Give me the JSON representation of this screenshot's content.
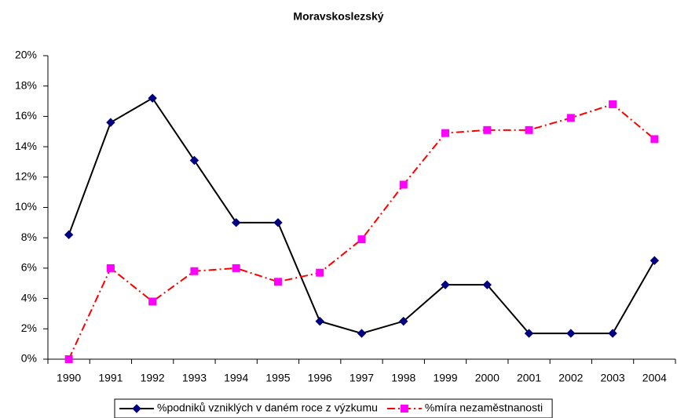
{
  "chart_data": {
    "type": "line",
    "title": "Moravskoslezský",
    "categories": [
      "1990",
      "1991",
      "1992",
      "1993",
      "1994",
      "1995",
      "1996",
      "1997",
      "1998",
      "1999",
      "2000",
      "2001",
      "2002",
      "2003",
      "2004"
    ],
    "series": [
      {
        "name": "%podniků vzniklých v daném roce z výzkumu",
        "color": "#000080",
        "line_color": "#000000",
        "marker": "diamond",
        "dash": "solid",
        "values": [
          8.2,
          15.6,
          17.2,
          13.1,
          9.0,
          9.0,
          2.5,
          1.7,
          2.5,
          4.9,
          4.9,
          1.7,
          1.7,
          1.7,
          6.5
        ]
      },
      {
        "name": "%míra nezaměstnanosti",
        "color": "#ff00ff",
        "line_color": "#ff0000",
        "marker": "square",
        "dash": "dash-dot",
        "values": [
          0,
          6.0,
          3.8,
          5.8,
          6.0,
          5.1,
          5.7,
          7.9,
          11.5,
          14.9,
          15.1,
          15.1,
          15.9,
          16.8,
          14.5
        ]
      }
    ],
    "ylim": [
      0,
      20
    ],
    "yticks": [
      {
        "value": 0,
        "label": "0%"
      },
      {
        "value": 2,
        "label": "2%"
      },
      {
        "value": 4,
        "label": "4%"
      },
      {
        "value": 6,
        "label": "6%"
      },
      {
        "value": 8,
        "label": "8%"
      },
      {
        "value": 10,
        "label": "10%"
      },
      {
        "value": 12,
        "label": "12%"
      },
      {
        "value": 14,
        "label": "14%"
      },
      {
        "value": 16,
        "label": "16%"
      },
      {
        "value": 18,
        "label": "18%"
      },
      {
        "value": 20,
        "label": "20%"
      }
    ],
    "grid": false,
    "legend": "bottom"
  }
}
